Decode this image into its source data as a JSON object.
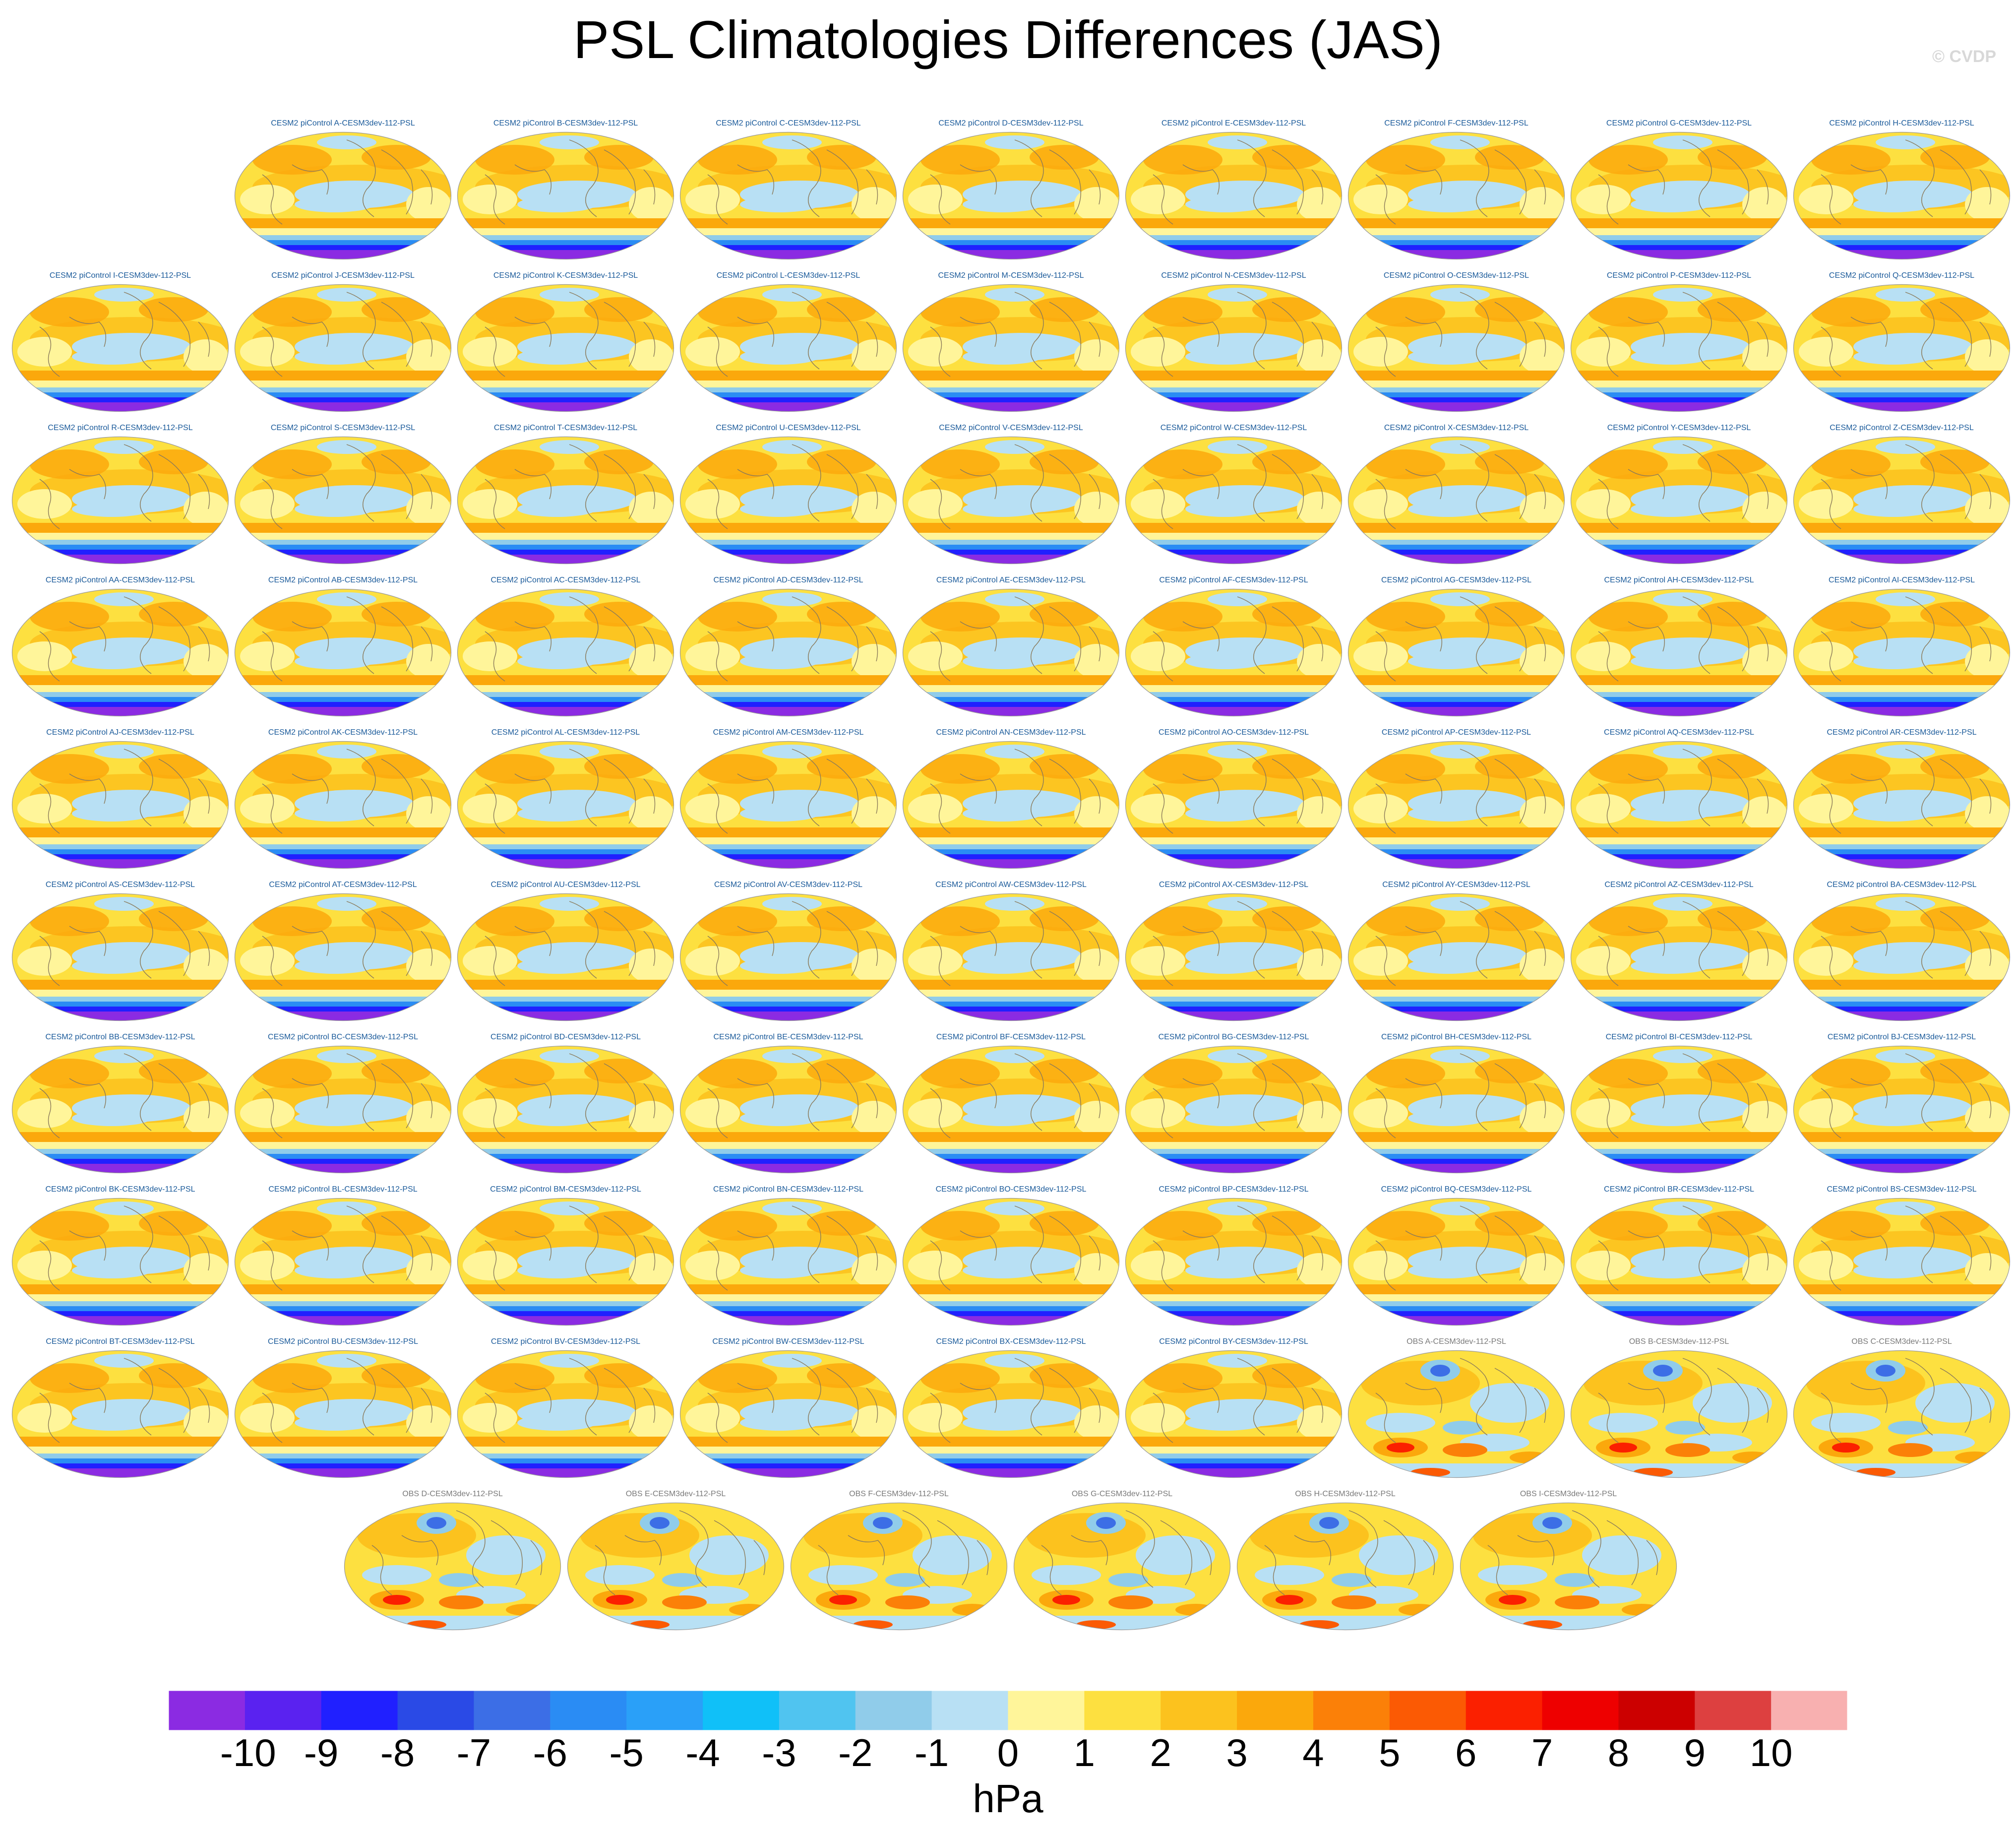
{
  "title": "PSL Climatologies Differences (JAS)",
  "watermark": "© CVDP",
  "colors": {
    "model_title": "#1a5a9a",
    "obs_title": "#7a7a7a",
    "coast": "#8a7a5a",
    "outline": "#999999"
  },
  "chart_data": {
    "type": "heatmap",
    "title": "PSL Climatologies Differences (JAS)",
    "units": "hPa",
    "colorbar": {
      "levels": [
        -10,
        -9,
        -8,
        -7,
        -6,
        -5,
        -4,
        -3,
        -2,
        -1,
        0,
        1,
        2,
        3,
        4,
        5,
        6,
        7,
        8,
        9,
        10
      ],
      "tick_labels": [
        "-10",
        "-9",
        "-8",
        "-7",
        "-6",
        "-5",
        "-4",
        "-3",
        "-2",
        "-1",
        "0",
        "1",
        "2",
        "3",
        "4",
        "5",
        "6",
        "7",
        "8",
        "9",
        "10"
      ],
      "colors": [
        "#8b2be2",
        "#5a22f0",
        "#2020ff",
        "#2a4ae6",
        "#3c6ee6",
        "#2a8cf4",
        "#2aa0f8",
        "#10c0f8",
        "#50c4f0",
        "#90ccea",
        "#b8e0f4",
        "#fff59a",
        "#fde040",
        "#fcc21e",
        "#fba80c",
        "#fb8008",
        "#fb5a04",
        "#fb2000",
        "#ee0000",
        "#cc0000",
        "#dd4040",
        "#f8b0b0"
      ]
    },
    "panels": [
      {
        "label": "CESM2 piControl A-CESM3dev-112-PSL",
        "kind": "model"
      },
      {
        "label": "CESM2 piControl B-CESM3dev-112-PSL",
        "kind": "model"
      },
      {
        "label": "CESM2 piControl C-CESM3dev-112-PSL",
        "kind": "model"
      },
      {
        "label": "CESM2 piControl D-CESM3dev-112-PSL",
        "kind": "model"
      },
      {
        "label": "CESM2 piControl E-CESM3dev-112-PSL",
        "kind": "model"
      },
      {
        "label": "CESM2 piControl F-CESM3dev-112-PSL",
        "kind": "model"
      },
      {
        "label": "CESM2 piControl G-CESM3dev-112-PSL",
        "kind": "model"
      },
      {
        "label": "CESM2 piControl H-CESM3dev-112-PSL",
        "kind": "model"
      },
      {
        "label": "CESM2 piControl I-CESM3dev-112-PSL",
        "kind": "model"
      },
      {
        "label": "CESM2 piControl J-CESM3dev-112-PSL",
        "kind": "model"
      },
      {
        "label": "CESM2 piControl K-CESM3dev-112-PSL",
        "kind": "model"
      },
      {
        "label": "CESM2 piControl L-CESM3dev-112-PSL",
        "kind": "model"
      },
      {
        "label": "CESM2 piControl M-CESM3dev-112-PSL",
        "kind": "model"
      },
      {
        "label": "CESM2 piControl N-CESM3dev-112-PSL",
        "kind": "model"
      },
      {
        "label": "CESM2 piControl O-CESM3dev-112-PSL",
        "kind": "model"
      },
      {
        "label": "CESM2 piControl P-CESM3dev-112-PSL",
        "kind": "model"
      },
      {
        "label": "CESM2 piControl Q-CESM3dev-112-PSL",
        "kind": "model"
      },
      {
        "label": "CESM2 piControl R-CESM3dev-112-PSL",
        "kind": "model"
      },
      {
        "label": "CESM2 piControl S-CESM3dev-112-PSL",
        "kind": "model"
      },
      {
        "label": "CESM2 piControl T-CESM3dev-112-PSL",
        "kind": "model"
      },
      {
        "label": "CESM2 piControl U-CESM3dev-112-PSL",
        "kind": "model"
      },
      {
        "label": "CESM2 piControl V-CESM3dev-112-PSL",
        "kind": "model"
      },
      {
        "label": "CESM2 piControl W-CESM3dev-112-PSL",
        "kind": "model"
      },
      {
        "label": "CESM2 piControl X-CESM3dev-112-PSL",
        "kind": "model"
      },
      {
        "label": "CESM2 piControl Y-CESM3dev-112-PSL",
        "kind": "model"
      },
      {
        "label": "CESM2 piControl Z-CESM3dev-112-PSL",
        "kind": "model"
      },
      {
        "label": "CESM2 piControl AA-CESM3dev-112-PSL",
        "kind": "model"
      },
      {
        "label": "CESM2 piControl AB-CESM3dev-112-PSL",
        "kind": "model"
      },
      {
        "label": "CESM2 piControl AC-CESM3dev-112-PSL",
        "kind": "model"
      },
      {
        "label": "CESM2 piControl AD-CESM3dev-112-PSL",
        "kind": "model"
      },
      {
        "label": "CESM2 piControl AE-CESM3dev-112-PSL",
        "kind": "model"
      },
      {
        "label": "CESM2 piControl AF-CESM3dev-112-PSL",
        "kind": "model"
      },
      {
        "label": "CESM2 piControl AG-CESM3dev-112-PSL",
        "kind": "model"
      },
      {
        "label": "CESM2 piControl AH-CESM3dev-112-PSL",
        "kind": "model"
      },
      {
        "label": "CESM2 piControl AI-CESM3dev-112-PSL",
        "kind": "model"
      },
      {
        "label": "CESM2 piControl AJ-CESM3dev-112-PSL",
        "kind": "model"
      },
      {
        "label": "CESM2 piControl AK-CESM3dev-112-PSL",
        "kind": "model"
      },
      {
        "label": "CESM2 piControl AL-CESM3dev-112-PSL",
        "kind": "model"
      },
      {
        "label": "CESM2 piControl AM-CESM3dev-112-PSL",
        "kind": "model"
      },
      {
        "label": "CESM2 piControl AN-CESM3dev-112-PSL",
        "kind": "model"
      },
      {
        "label": "CESM2 piControl AO-CESM3dev-112-PSL",
        "kind": "model"
      },
      {
        "label": "CESM2 piControl AP-CESM3dev-112-PSL",
        "kind": "model"
      },
      {
        "label": "CESM2 piControl AQ-CESM3dev-112-PSL",
        "kind": "model"
      },
      {
        "label": "CESM2 piControl AR-CESM3dev-112-PSL",
        "kind": "model"
      },
      {
        "label": "CESM2 piControl AS-CESM3dev-112-PSL",
        "kind": "model"
      },
      {
        "label": "CESM2 piControl AT-CESM3dev-112-PSL",
        "kind": "model"
      },
      {
        "label": "CESM2 piControl AU-CESM3dev-112-PSL",
        "kind": "model"
      },
      {
        "label": "CESM2 piControl AV-CESM3dev-112-PSL",
        "kind": "model"
      },
      {
        "label": "CESM2 piControl AW-CESM3dev-112-PSL",
        "kind": "model"
      },
      {
        "label": "CESM2 piControl AX-CESM3dev-112-PSL",
        "kind": "model"
      },
      {
        "label": "CESM2 piControl AY-CESM3dev-112-PSL",
        "kind": "model"
      },
      {
        "label": "CESM2 piControl AZ-CESM3dev-112-PSL",
        "kind": "model"
      },
      {
        "label": "CESM2 piControl BA-CESM3dev-112-PSL",
        "kind": "model"
      },
      {
        "label": "CESM2 piControl BB-CESM3dev-112-PSL",
        "kind": "model"
      },
      {
        "label": "CESM2 piControl BC-CESM3dev-112-PSL",
        "kind": "model"
      },
      {
        "label": "CESM2 piControl BD-CESM3dev-112-PSL",
        "kind": "model"
      },
      {
        "label": "CESM2 piControl BE-CESM3dev-112-PSL",
        "kind": "model"
      },
      {
        "label": "CESM2 piControl BF-CESM3dev-112-PSL",
        "kind": "model"
      },
      {
        "label": "CESM2 piControl BG-CESM3dev-112-PSL",
        "kind": "model"
      },
      {
        "label": "CESM2 piControl BH-CESM3dev-112-PSL",
        "kind": "model"
      },
      {
        "label": "CESM2 piControl BI-CESM3dev-112-PSL",
        "kind": "model"
      },
      {
        "label": "CESM2 piControl BJ-CESM3dev-112-PSL",
        "kind": "model"
      },
      {
        "label": "CESM2 piControl BK-CESM3dev-112-PSL",
        "kind": "model"
      },
      {
        "label": "CESM2 piControl BL-CESM3dev-112-PSL",
        "kind": "model"
      },
      {
        "label": "CESM2 piControl BM-CESM3dev-112-PSL",
        "kind": "model"
      },
      {
        "label": "CESM2 piControl BN-CESM3dev-112-PSL",
        "kind": "model"
      },
      {
        "label": "CESM2 piControl BO-CESM3dev-112-PSL",
        "kind": "model"
      },
      {
        "label": "CESM2 piControl BP-CESM3dev-112-PSL",
        "kind": "model"
      },
      {
        "label": "CESM2 piControl BQ-CESM3dev-112-PSL",
        "kind": "model"
      },
      {
        "label": "CESM2 piControl BR-CESM3dev-112-PSL",
        "kind": "model"
      },
      {
        "label": "CESM2 piControl BS-CESM3dev-112-PSL",
        "kind": "model"
      },
      {
        "label": "CESM2 piControl BT-CESM3dev-112-PSL",
        "kind": "model"
      },
      {
        "label": "CESM2 piControl BU-CESM3dev-112-PSL",
        "kind": "model"
      },
      {
        "label": "CESM2 piControl BV-CESM3dev-112-PSL",
        "kind": "model"
      },
      {
        "label": "CESM2 piControl BW-CESM3dev-112-PSL",
        "kind": "model"
      },
      {
        "label": "CESM2 piControl BX-CESM3dev-112-PSL",
        "kind": "model"
      },
      {
        "label": "CESM2 piControl BY-CESM3dev-112-PSL",
        "kind": "model"
      },
      {
        "label": "OBS A-CESM3dev-112-PSL",
        "kind": "obs"
      },
      {
        "label": "OBS B-CESM3dev-112-PSL",
        "kind": "obs"
      },
      {
        "label": "OBS C-CESM3dev-112-PSL",
        "kind": "obs"
      },
      {
        "label": "OBS D-CESM3dev-112-PSL",
        "kind": "obs"
      },
      {
        "label": "OBS E-CESM3dev-112-PSL",
        "kind": "obs"
      },
      {
        "label": "OBS F-CESM3dev-112-PSL",
        "kind": "obs"
      },
      {
        "label": "OBS G-CESM3dev-112-PSL",
        "kind": "obs"
      },
      {
        "label": "OBS H-CESM3dev-112-PSL",
        "kind": "obs"
      },
      {
        "label": "OBS I-CESM3dev-112-PSL",
        "kind": "obs"
      }
    ]
  }
}
